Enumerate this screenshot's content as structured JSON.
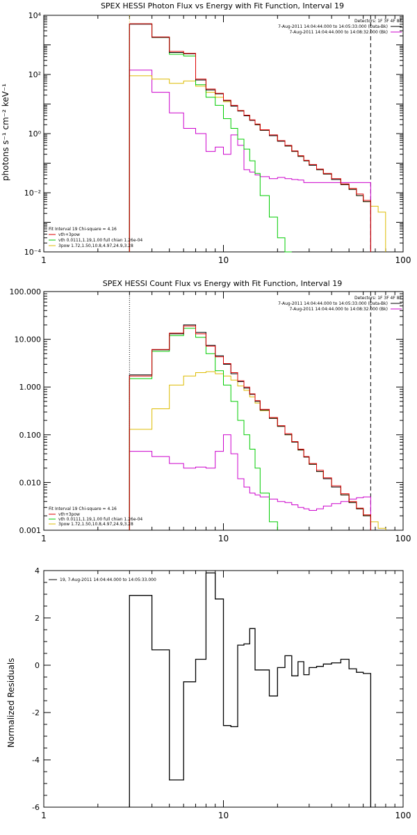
{
  "chart_data": [
    {
      "type": "line",
      "title": "SPEX HESSI Photon Flux vs Energy with Fit Function, Interval 19",
      "xlabel": "",
      "ylabel": "photons s⁻¹ cm⁻² keV⁻¹",
      "xscale": "log",
      "yscale": "log",
      "xlim": [
        1,
        100
      ],
      "ylim": [
        0.0001,
        10000
      ],
      "xticks": [
        "1",
        "10",
        "100"
      ],
      "yticks": [
        "10⁻⁴",
        "10⁻²",
        "10⁰",
        "10²",
        "10⁴"
      ],
      "legend_tr": {
        "header": "Detectors: 1F 3F 4F 8F",
        "entries": [
          {
            "text": "7-Aug-2011 14:04:44.000 to 14:05:33.000 (Data-Bk)",
            "color": "#000000"
          },
          {
            "text": "7-Aug-2011 14:04:44.000 to 14:08:32.000 (Bk)",
            "color": "#cc00cc"
          }
        ]
      },
      "legend_bl": {
        "header": "Fit Interval 19   Chi-square = 4.16",
        "entries": [
          {
            "text": "vth+3pow",
            "color": "#dd0000"
          },
          {
            "text": "vth 0.0111,1.19,1.00  full chian 1.26e-04",
            "color": "#00cc00"
          },
          {
            "text": "3pow 1.72,1.50,10.8,4.97,24.9,3.28",
            "color": "#ddbb00"
          }
        ]
      },
      "vlines": [
        {
          "x": 3.0,
          "color": "#ddbb00",
          "style": "dotted"
        },
        {
          "x": 66,
          "color": "#000000",
          "style": "dashed"
        }
      ],
      "bin_edges": [
        3,
        4,
        5,
        6,
        7,
        8,
        9,
        10,
        11,
        12,
        13,
        14,
        15,
        16,
        18,
        20,
        22,
        24,
        26,
        28,
        30,
        33,
        36,
        40,
        45,
        50,
        55,
        60,
        66
      ],
      "series": [
        {
          "label": "data",
          "color": "#000000",
          "values": [
            5000,
            1800,
            550,
            500,
            65,
            30,
            22,
            13,
            8.5,
            5.8,
            4.0,
            2.8,
            2.0,
            1.3,
            0.85,
            0.55,
            0.38,
            0.25,
            0.17,
            0.12,
            0.085,
            0.06,
            0.043,
            0.028,
            0.019,
            0.013,
            0.008,
            0.005
          ]
        },
        {
          "label": "vth+3pow",
          "color": "#dd0000",
          "values": [
            5200,
            1850,
            600,
            520,
            70,
            32,
            23,
            13.5,
            9.0,
            6.0,
            4.2,
            2.9,
            2.1,
            1.35,
            0.9,
            0.58,
            0.4,
            0.26,
            0.18,
            0.125,
            0.09,
            0.063,
            0.045,
            0.03,
            0.02,
            0.014,
            0.009,
            0.0055
          ]
        },
        {
          "label": "vth",
          "color": "#00cc00",
          "values": [
            5100,
            1800,
            480,
            420,
            45,
            17,
            9,
            3.2,
            1.5,
            0.65,
            0.3,
            0.12,
            0.045,
            0.008,
            0.0015,
            0.0003,
            0.0001
          ]
        },
        {
          "label": "3pow",
          "color": "#ddbb00",
          "values": [
            90,
            70,
            50,
            60,
            40,
            25,
            17,
            12,
            8.5,
            6.0,
            4.1,
            2.8,
            2.0,
            1.3,
            0.85,
            0.55,
            0.38,
            0.25,
            0.17,
            0.12,
            0.085,
            0.06,
            0.043,
            0.028,
            0.019,
            0.013,
            0.008,
            0.005,
            0.0035,
            0.0022
          ]
        },
        {
          "label": "background",
          "color": "#cc00cc",
          "values": [
            140,
            25,
            5,
            1.5,
            1.0,
            0.25,
            0.35,
            0.2,
            0.9,
            0.4,
            0.06,
            0.05,
            0.04,
            0.035,
            0.03,
            0.033,
            0.03,
            0.028,
            0.027,
            0.022,
            0.022,
            0.022,
            0.022,
            0.022,
            0.022,
            0.022,
            0.022,
            0.022
          ]
        }
      ]
    },
    {
      "type": "line",
      "title": "SPEX HESSI Count Flux vs Energy with Fit Function, Interval 19",
      "xlabel": "",
      "ylabel": "",
      "xscale": "log",
      "yscale": "log",
      "xlim": [
        1,
        100
      ],
      "ylim": [
        0.001,
        100
      ],
      "xticks": [
        "1",
        "10",
        "100"
      ],
      "yticks": [
        "0.001",
        "0.010",
        "0.100",
        "1.000",
        "10.000",
        "100.000"
      ],
      "legend_tr": {
        "header": "Detectors: 1F 3F 4F 8F",
        "entries": [
          {
            "text": "7-Aug-2011 14:04:44.000 to 14:05:33.000 (Data-Bk)",
            "color": "#000000"
          },
          {
            "text": "7-Aug-2011 14:04:44.000 to 14:08:32.000 (Bk)",
            "color": "#cc00cc"
          }
        ]
      },
      "legend_bl": {
        "header": "Fit Interval 19   Chi-square = 4.16",
        "entries": [
          {
            "text": "vth+3pow",
            "color": "#dd0000"
          },
          {
            "text": "vth 0.0111,1.19,1.00  full chian 1.26e-04",
            "color": "#00cc00"
          },
          {
            "text": "3pow 1.72,1.50,10.8,4.97,24.9,3.28",
            "color": "#ddbb00"
          }
        ]
      },
      "vlines": [
        {
          "x": 3.0,
          "color": "#000000",
          "style": "dotted"
        },
        {
          "x": 66,
          "color": "#000000",
          "style": "dashed"
        }
      ],
      "bin_edges": [
        3,
        4,
        5,
        6,
        7,
        8,
        9,
        10,
        11,
        12,
        13,
        14,
        15,
        16,
        18,
        20,
        22,
        24,
        26,
        28,
        30,
        33,
        36,
        40,
        45,
        50,
        55,
        60,
        66
      ],
      "series": [
        {
          "label": "data",
          "color": "#000000",
          "values": [
            1.8,
            6.0,
            13,
            20,
            14,
            7.5,
            4.5,
            3.0,
            1.9,
            1.3,
            0.95,
            0.7,
            0.5,
            0.33,
            0.22,
            0.15,
            0.1,
            0.07,
            0.048,
            0.034,
            0.024,
            0.017,
            0.012,
            0.008,
            0.0055,
            0.0038,
            0.0028,
            0.002
          ]
        },
        {
          "label": "vth+3pow",
          "color": "#dd0000",
          "values": [
            1.7,
            6.1,
            13.5,
            19,
            13,
            7.2,
            4.3,
            3.1,
            2.0,
            1.35,
            1.0,
            0.72,
            0.52,
            0.34,
            0.23,
            0.155,
            0.105,
            0.072,
            0.05,
            0.035,
            0.025,
            0.018,
            0.0125,
            0.0085,
            0.0058,
            0.004,
            0.0029,
            0.0021
          ]
        },
        {
          "label": "vth",
          "color": "#00cc00",
          "values": [
            1.5,
            5.6,
            12,
            17,
            11,
            5.0,
            2.2,
            1.1,
            0.5,
            0.2,
            0.1,
            0.05,
            0.02,
            0.006,
            0.0015
          ]
        },
        {
          "label": "3pow",
          "color": "#ddbb00",
          "values": [
            0.13,
            0.35,
            1.1,
            1.7,
            2.0,
            2.1,
            1.9,
            1.7,
            1.4,
            1.05,
            0.85,
            0.62,
            0.46,
            0.32,
            0.22,
            0.15,
            0.1,
            0.07,
            0.048,
            0.034,
            0.024,
            0.017,
            0.012,
            0.008,
            0.0055,
            0.0038,
            0.0028,
            0.002,
            0.0015,
            0.0011
          ]
        },
        {
          "label": "background",
          "color": "#cc00cc",
          "values": [
            0.045,
            0.035,
            0.025,
            0.02,
            0.021,
            0.02,
            0.045,
            0.1,
            0.04,
            0.012,
            0.008,
            0.006,
            0.0055,
            0.005,
            0.0045,
            0.004,
            0.0038,
            0.0034,
            0.003,
            0.0028,
            0.0026,
            0.0028,
            0.0032,
            0.0036,
            0.004,
            0.0045,
            0.0048,
            0.005
          ]
        }
      ]
    },
    {
      "type": "line",
      "title": "",
      "xlabel": "",
      "ylabel": "Normalized Residuals",
      "xscale": "log",
      "yscale": "linear",
      "xlim": [
        1,
        100
      ],
      "ylim": [
        -6,
        4
      ],
      "xticks": [
        "1",
        "10",
        "100"
      ],
      "yticks": [
        "-6",
        "-4",
        "-2",
        "0",
        "2",
        "4"
      ],
      "legend_tl": {
        "entries": [
          {
            "text": "19,  7-Aug-2011 14:04:44.000 to 14:05:33.000",
            "color": "#000000"
          }
        ]
      },
      "bin_edges": [
        3,
        4,
        5,
        6,
        7,
        8,
        9,
        10,
        11,
        12,
        13,
        14,
        15,
        16,
        18,
        20,
        22,
        24,
        26,
        28,
        30,
        33,
        36,
        40,
        45,
        50,
        55,
        60,
        66
      ],
      "series": [
        {
          "label": "residuals",
          "color": "#000000",
          "values": [
            2.95,
            0.65,
            -4.85,
            -0.7,
            0.25,
            3.9,
            2.8,
            -2.55,
            -2.6,
            0.85,
            0.9,
            1.55,
            -0.2,
            -0.2,
            -1.3,
            -0.1,
            0.4,
            -0.45,
            0.15,
            -0.4,
            -0.1,
            -0.05,
            0.05,
            0.1,
            0.25,
            -0.15,
            -0.3,
            -0.35
          ]
        }
      ]
    }
  ]
}
